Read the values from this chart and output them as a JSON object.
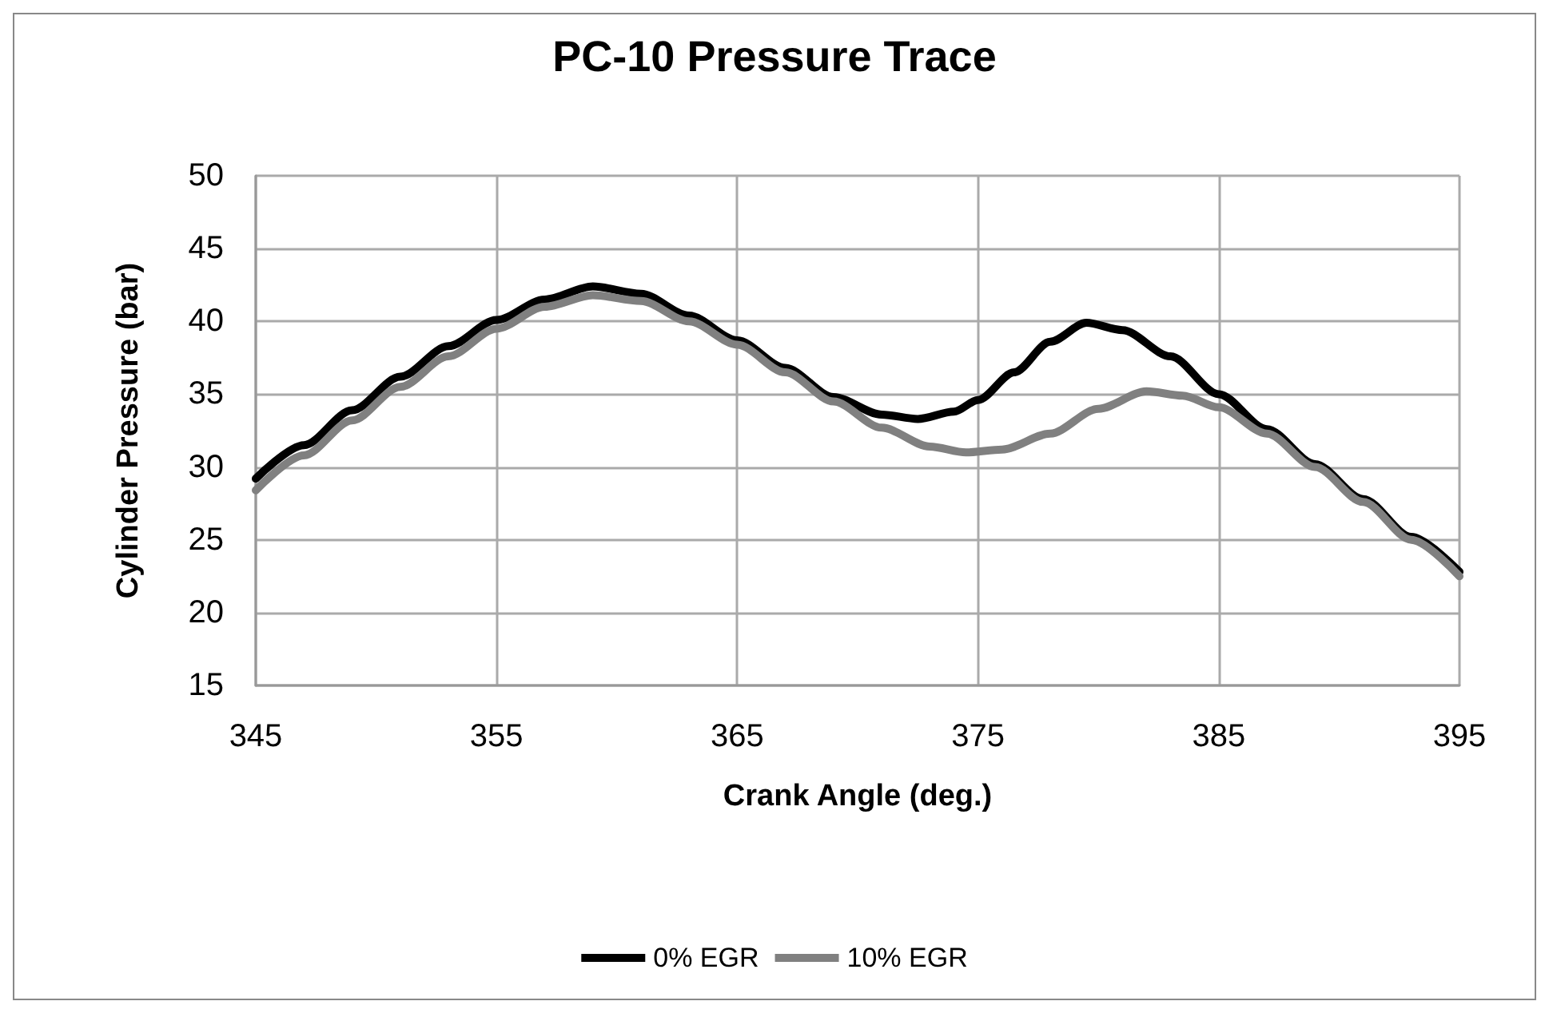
{
  "chart_data": {
    "type": "line",
    "title": "PC-10 Pressure Trace",
    "xlabel": "Crank Angle (deg.)",
    "ylabel": "Cylinder Pressure (bar)",
    "xlim": [
      345,
      395
    ],
    "xticks": [
      345,
      355,
      365,
      375,
      385,
      395
    ],
    "ylim": [
      15,
      50
    ],
    "yticks": [
      15,
      20,
      25,
      30,
      35,
      40,
      45,
      50
    ],
    "grid": true,
    "legend": "bottom",
    "marker": "none",
    "line_style": "solid",
    "series": [
      {
        "name": "0% EGR",
        "color": "#000000",
        "x": [
          345,
          347,
          349,
          351,
          353,
          355,
          357,
          359,
          361,
          363,
          365,
          367,
          369,
          371,
          372.5,
          374,
          375,
          376.5,
          378,
          379.5,
          381,
          383,
          385,
          387,
          389,
          391,
          393,
          395
        ],
        "values": [
          29.2,
          31.5,
          33.9,
          36.2,
          38.3,
          40.1,
          41.5,
          42.4,
          41.9,
          40.4,
          38.7,
          36.8,
          34.8,
          33.6,
          33.3,
          33.8,
          34.6,
          36.5,
          38.6,
          39.9,
          39.4,
          37.6,
          35.0,
          32.6,
          30.2,
          27.8,
          25.2,
          22.8
        ]
      },
      {
        "name": "10% EGR",
        "color": "#808080",
        "x": [
          345,
          347,
          349,
          351,
          353,
          355,
          357,
          359,
          361,
          363,
          365,
          367,
          369,
          371,
          373,
          374.5,
          376,
          378,
          380,
          382,
          383.5,
          385,
          387,
          389,
          391,
          393,
          395
        ],
        "values": [
          28.4,
          30.8,
          33.2,
          35.5,
          37.6,
          39.5,
          41.0,
          41.8,
          41.4,
          40.0,
          38.4,
          36.5,
          34.5,
          32.7,
          31.4,
          31.0,
          31.2,
          32.3,
          34.0,
          35.2,
          34.9,
          34.1,
          32.3,
          30.0,
          27.6,
          25.0,
          22.5
        ]
      }
    ]
  }
}
